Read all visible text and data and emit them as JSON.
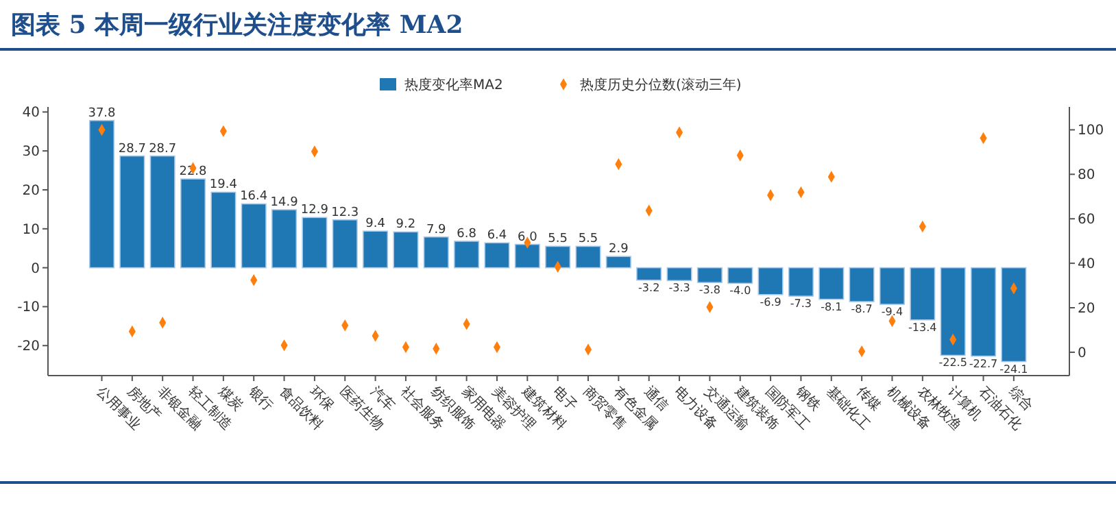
{
  "chart_data": {
    "type": "bar",
    "title": "图表 5   本周一级行业关注度变化率 MA2",
    "categories": [
      "公用事业",
      "房地产",
      "非银金融",
      "轻工制造",
      "煤炭",
      "银行",
      "食品饮料",
      "环保",
      "医药生物",
      "汽车",
      "社会服务",
      "纺织服饰",
      "家用电器",
      "美容护理",
      "建筑材料",
      "电子",
      "商贸零售",
      "有色金属",
      "通信",
      "电力设备",
      "交通运输",
      "建筑装饰",
      "国防军工",
      "钢铁",
      "基础化工",
      "传媒",
      "机械设备",
      "农林牧渔",
      "计算机",
      "石油石化",
      "综合"
    ],
    "series": [
      {
        "name": "热度变化率MA2",
        "color": "#1f77b4",
        "values": [
          37.8,
          28.7,
          28.7,
          22.8,
          19.4,
          16.4,
          14.9,
          12.9,
          12.3,
          9.4,
          9.2,
          7.9,
          6.8,
          6.4,
          6.0,
          5.5,
          5.5,
          2.9,
          -3.2,
          -3.3,
          -3.8,
          -4.0,
          -6.9,
          -7.3,
          -8.1,
          -8.7,
          -9.4,
          -13.4,
          -22.5,
          -22.7,
          -24.1
        ],
        "value_labels": [
          "37.8",
          "28.7",
          "28.7",
          "22.8",
          "19.4",
          "16.4",
          "14.9",
          "12.9",
          "12.3",
          "9.4",
          "9.2",
          "7.9",
          "6.8",
          "6.4",
          "6.0",
          "5.5",
          "5.5",
          "2.9",
          "-3.2",
          "-3.3",
          "-3.8",
          "-4.0",
          "-6.9",
          "-7.3",
          "-8.1",
          "-8.7",
          "-9.4",
          "-13.4",
          "-22.5",
          "-22.7",
          "-24.1"
        ]
      },
      {
        "name": "热度历史分位数(滚动三年)",
        "type": "scatter",
        "axis": "y2",
        "color": "#ff7f0e",
        "values": [
          100,
          9.4,
          13.3,
          82.8,
          99.4,
          32.4,
          3.1,
          90.3,
          12.1,
          7.4,
          2.3,
          1.6,
          12.7,
          2.3,
          49.3,
          38.4,
          1.2,
          84.6,
          63.7,
          98.8,
          20.3,
          88.5,
          70.6,
          71.9,
          78.9,
          0.4,
          14.0,
          56.5,
          5.7,
          96.3,
          28.7
        ]
      }
    ],
    "ylim": [
      -27.7,
      41.3
    ],
    "yticks": [
      -20,
      -10,
      0,
      10,
      20,
      30,
      40
    ],
    "y2lim": [
      -10.5,
      110.3
    ],
    "y2ticks": [
      0,
      20,
      40,
      60,
      80,
      100
    ],
    "legend": "top",
    "marker": "diamond",
    "grid": false
  }
}
